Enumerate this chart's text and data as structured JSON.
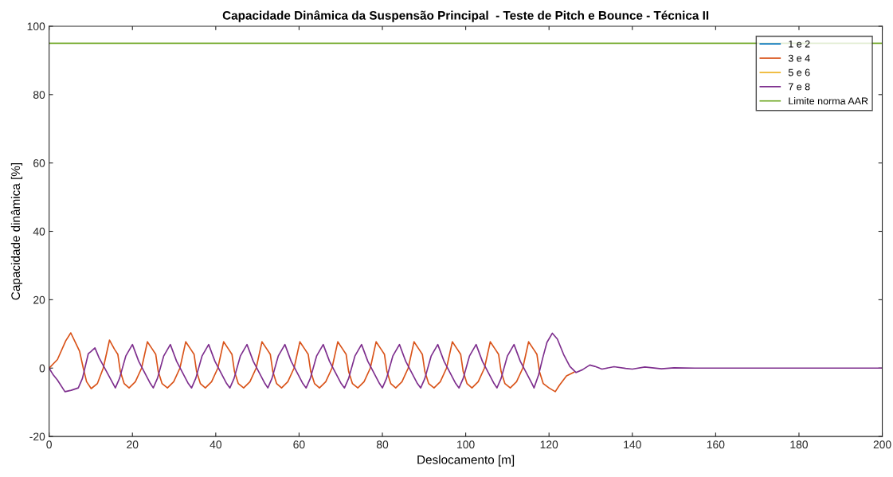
{
  "chart_data": {
    "type": "line",
    "title": "Capacidade Dinâmica da Suspensão Principal  - Teste de Pitch e Bounce - Técnica II",
    "xlabel": "Deslocamento [m]",
    "ylabel": "Capacidade dinâmica [%]",
    "xlim": [
      0,
      200
    ],
    "ylim": [
      -20,
      100
    ],
    "xticks": [
      0,
      20,
      40,
      60,
      80,
      100,
      120,
      140,
      160,
      180,
      200
    ],
    "yticks": [
      -20,
      0,
      20,
      40,
      60,
      80,
      100
    ],
    "grid": false,
    "legend": "top right",
    "series": [
      {
        "name": "1 e 2",
        "color": "#0072bd"
      },
      {
        "name": "3 e 4",
        "color": "#d95319",
        "x": [
          0,
          2,
          4,
          5.2,
          6.5,
          7.3,
          8.2,
          9,
          10.1,
          11.6,
          13,
          14.5,
          15.7,
          16.5,
          17.1,
          18,
          19.2,
          20.7,
          22.2,
          23.6,
          24.8,
          25.6,
          26.2,
          27.1,
          28.4,
          29.9,
          31.4,
          32.8,
          34.0,
          34.8,
          35.4,
          36.3,
          37.5,
          39.0,
          40.5,
          41.9,
          43.1,
          43.9,
          44.5,
          45.4,
          46.7,
          48.2,
          49.7,
          51.1,
          52.3,
          53.1,
          53.7,
          54.6,
          55.8,
          57.3,
          58.8,
          60.2,
          61.4,
          62.2,
          62.8,
          63.7,
          64.9,
          66.4,
          67.9,
          69.3,
          70.5,
          71.3,
          71.9,
          72.8,
          74.1,
          75.6,
          77.1,
          78.5,
          79.7,
          80.5,
          81.1,
          82.0,
          83.2,
          84.7,
          86.2,
          87.6,
          88.8,
          89.6,
          90.2,
          91.1,
          92.4,
          93.9,
          95.4,
          96.8,
          98.0,
          98.8,
          99.4,
          100.3,
          101.5,
          103.0,
          104.5,
          105.9,
          107.1,
          107.9,
          108.5,
          109.4,
          110.7,
          112.2,
          113.7,
          115.1,
          116.3,
          117.1,
          117.7,
          118.6,
          120,
          121.5,
          122.5,
          124.2,
          125,
          126
        ],
        "values": [
          0,
          2.5,
          8,
          10.3,
          7,
          5,
          0,
          -4,
          -6,
          -4.5,
          0,
          8.2,
          5.5,
          4,
          -1,
          -4.5,
          -5.8,
          -4,
          0,
          7.7,
          5.5,
          4,
          -1,
          -4.5,
          -5.8,
          -4,
          0,
          7.7,
          5.5,
          4,
          -1,
          -4.5,
          -5.8,
          -4,
          0,
          7.7,
          5.5,
          4,
          -1,
          -4.5,
          -5.8,
          -4,
          0,
          7.7,
          5.5,
          4,
          -1,
          -4.5,
          -5.8,
          -4,
          0,
          7.7,
          5.5,
          4,
          -1,
          -4.5,
          -5.8,
          -4,
          0,
          7.7,
          5.5,
          4,
          -1,
          -4.5,
          -5.8,
          -4,
          0,
          7.7,
          5.5,
          4,
          -1,
          -4.5,
          -5.8,
          -4,
          0,
          7.7,
          5.5,
          4,
          -1,
          -4.5,
          -5.8,
          -4,
          0,
          7.7,
          5.5,
          4,
          -1,
          -4.5,
          -5.8,
          -4,
          0,
          7.7,
          5.5,
          4,
          -1,
          -4.5,
          -5.8,
          -4,
          0,
          7.7,
          5.5,
          4,
          -1,
          -4.5,
          -5.8,
          -6.9,
          -5,
          -2.3,
          -1.8,
          -1.2
        ]
      },
      {
        "name": "5 e 6",
        "color": "#edb120"
      },
      {
        "name": "7 e 8",
        "color": "#7e2f8e",
        "x": [
          0,
          1,
          2,
          3.8,
          5.3,
          7,
          8,
          9.4,
          10,
          11,
          12,
          14,
          15.9,
          16.9,
          18.4,
          20.0,
          21.5,
          23.0,
          24.3,
          25.0,
          26.0,
          27.5,
          29.1,
          30.6,
          32.1,
          33.4,
          34.2,
          35.2,
          36.7,
          38.3,
          39.8,
          41.3,
          42.6,
          43.4,
          44.4,
          45.9,
          47.5,
          49.0,
          50.5,
          51.8,
          52.5,
          53.5,
          55.0,
          56.6,
          58.1,
          59.6,
          60.9,
          61.7,
          62.7,
          64.2,
          65.8,
          67.3,
          68.8,
          70.1,
          70.9,
          71.9,
          73.4,
          75.0,
          76.5,
          78.0,
          79.3,
          80.0,
          81.0,
          82.5,
          84.1,
          85.6,
          87.1,
          88.4,
          89.2,
          90.2,
          91.7,
          93.3,
          94.8,
          96.3,
          97.6,
          98.4,
          99.4,
          100.9,
          102.5,
          104.0,
          105.5,
          106.8,
          107.5,
          108.5,
          110.0,
          111.6,
          113.1,
          114.6,
          115.9,
          116.4,
          117.5,
          118.5,
          119.5,
          120.8,
          122,
          123.5,
          125,
          126.5,
          128,
          129.8,
          131,
          132.7,
          135.6,
          138.4,
          140,
          143,
          147,
          150,
          155,
          200
        ],
        "values": [
          0,
          -2,
          -3.5,
          -6.9,
          -6.5,
          -5.8,
          -3,
          4.2,
          4.8,
          5.9,
          3,
          -1.5,
          -5.8,
          -3,
          3.5,
          6.9,
          2,
          -1.5,
          -4.5,
          -5.8,
          -3,
          3.5,
          6.9,
          2,
          -1.5,
          -4.5,
          -5.8,
          -3,
          3.5,
          6.9,
          2,
          -1.5,
          -4.5,
          -5.8,
          -3,
          3.5,
          6.9,
          2,
          -1.5,
          -4.5,
          -5.8,
          -3,
          3.5,
          6.9,
          2,
          -1.5,
          -4.5,
          -5.8,
          -3,
          3.5,
          6.9,
          2,
          -1.5,
          -4.5,
          -5.8,
          -3,
          3.5,
          6.9,
          2,
          -1.5,
          -4.5,
          -5.8,
          -3,
          3.5,
          6.9,
          2,
          -1.5,
          -4.5,
          -5.8,
          -3,
          3.5,
          6.9,
          2,
          -1.5,
          -4.5,
          -5.8,
          -3,
          3.5,
          6.9,
          2,
          -1.5,
          -4.5,
          -5.8,
          -3,
          3.5,
          6.9,
          2,
          -1.5,
          -4.5,
          -5.8,
          -2,
          3,
          7.5,
          10.2,
          8.5,
          4,
          0.5,
          -1.3,
          -0.5,
          0.9,
          0.5,
          -0.3,
          0.4,
          -0.1,
          -0.3,
          0.3,
          -0.2,
          0.1,
          0,
          0
        ]
      },
      {
        "name": "Limite norma AAR",
        "color": "#77ac30",
        "x": [
          0,
          200
        ],
        "values": [
          95,
          95
        ]
      }
    ]
  }
}
